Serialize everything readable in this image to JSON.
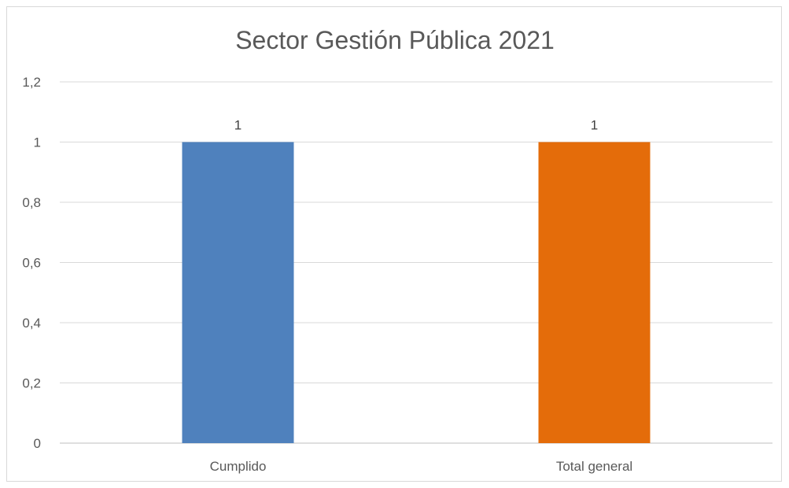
{
  "chart_data": {
    "type": "bar",
    "title": "Sector Gestión Pública 2021",
    "categories": [
      "Cumplido",
      "Total general"
    ],
    "values": [
      1,
      1
    ],
    "data_labels": [
      "1",
      "1"
    ],
    "bar_colors": [
      "#4f81bd",
      "#e46c0a"
    ],
    "ylim": [
      0,
      1.2
    ],
    "yticks": [
      0,
      0.2,
      0.4,
      0.6,
      0.8,
      1,
      1.2
    ],
    "ytick_labels": [
      "0",
      "0,2",
      "0,4",
      "0,6",
      "0,8",
      "1",
      "1,2"
    ],
    "xlabel": "",
    "ylabel": "",
    "grid": true,
    "legend": "none"
  }
}
